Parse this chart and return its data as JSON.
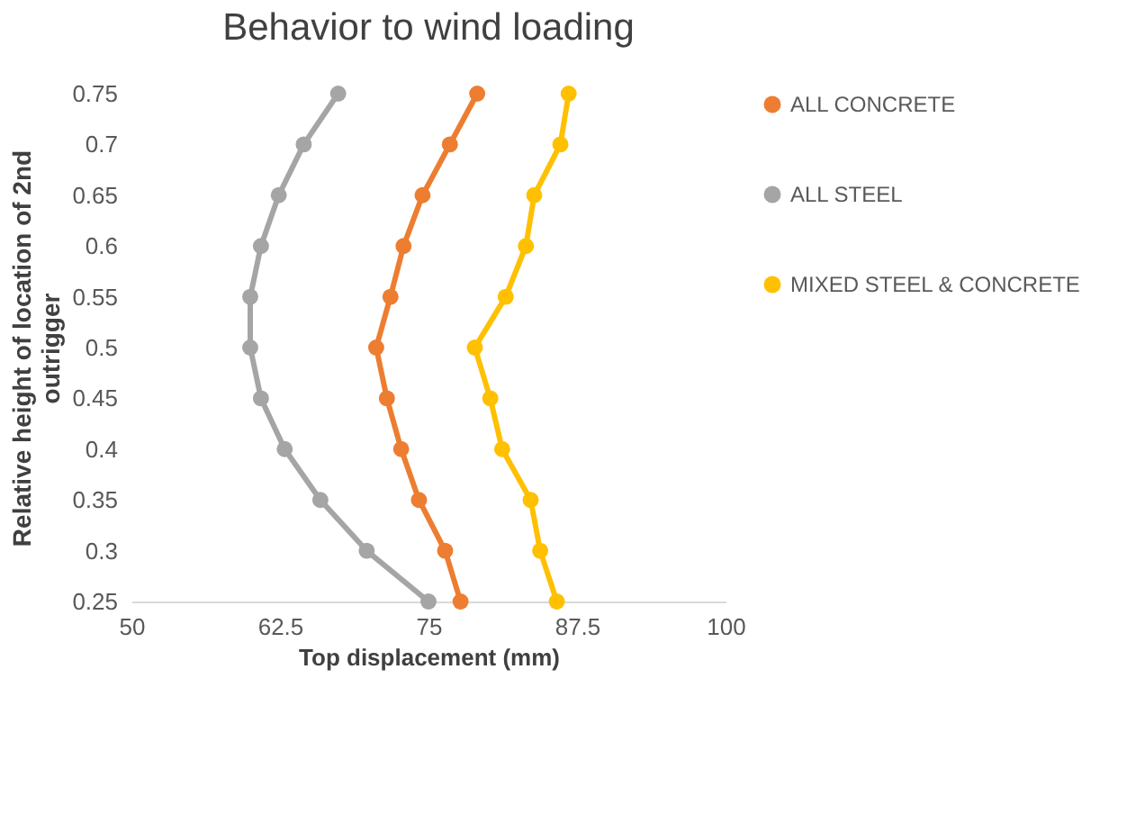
{
  "chart_data": {
    "type": "line",
    "title": "Behavior to wind loading",
    "xlabel": "Top displacement (mm)",
    "ylabel": "Relative height of location of 2nd outrigger",
    "xlim": [
      50,
      100
    ],
    "xticks": [
      50,
      62.5,
      75,
      87.5,
      100
    ],
    "ylim": [
      0.25,
      0.75
    ],
    "yticks": [
      0.25,
      0.3,
      0.35,
      0.4,
      0.45,
      0.5,
      0.55,
      0.6,
      0.65,
      0.7,
      0.75
    ],
    "grid": false,
    "legend": "right",
    "marker": "circle",
    "line_style": "solid",
    "series": [
      {
        "name": "ALL CONCRETE",
        "color": "#ed7d31",
        "x": [
          79.1,
          76.8,
          74.5,
          72.9,
          71.8,
          70.6,
          71.5,
          72.7,
          74.2,
          76.4,
          77.7
        ],
        "values": [
          0.75,
          0.7,
          0.65,
          0.6,
          0.55,
          0.5,
          0.45,
          0.4,
          0.35,
          0.3,
          0.25
        ]
      },
      {
        "name": "ALL STEEL",
        "color": "#a5a5a5",
        "x": [
          67.4,
          64.5,
          62.4,
          60.9,
          60.0,
          60.0,
          60.9,
          62.9,
          65.9,
          69.8,
          75.0
        ],
        "values": [
          0.75,
          0.7,
          0.65,
          0.6,
          0.55,
          0.5,
          0.45,
          0.4,
          0.35,
          0.3,
          0.25
        ]
      },
      {
        "name": "MIXED STEEL & CONCRETE",
        "color": "#ffc000",
        "x": [
          86.8,
          86.1,
          83.9,
          83.2,
          81.5,
          78.9,
          80.2,
          81.2,
          83.6,
          84.4,
          85.8
        ],
        "values": [
          0.75,
          0.7,
          0.65,
          0.6,
          0.55,
          0.5,
          0.45,
          0.4,
          0.35,
          0.3,
          0.25
        ]
      }
    ]
  }
}
